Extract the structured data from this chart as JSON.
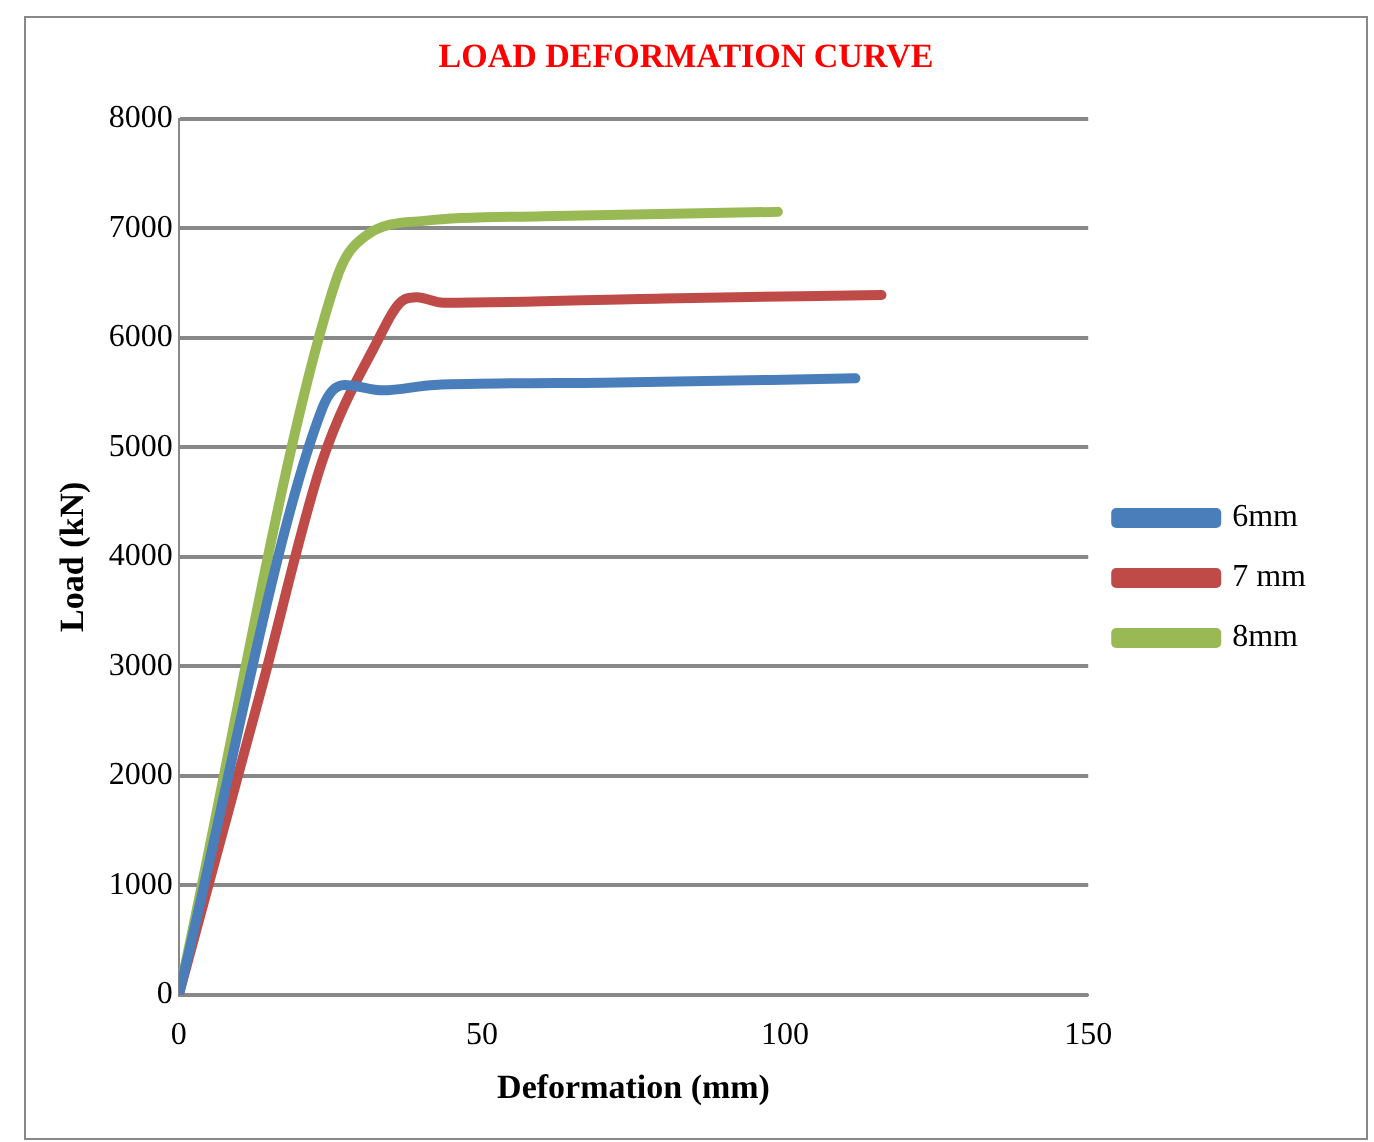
{
  "chart_data": {
    "type": "line",
    "title": "LOAD DEFORMATION CURVE",
    "xlabel": "Deformation (mm)",
    "ylabel": "Load (kN)",
    "xlim": [
      0,
      150
    ],
    "xticks": [
      0,
      50,
      100,
      150
    ],
    "ylim": [
      0,
      8000
    ],
    "yticks": [
      0,
      1000,
      2000,
      3000,
      4000,
      5000,
      6000,
      7000,
      8000
    ],
    "grid": "y",
    "legend": "right",
    "marker": "none",
    "line_style": "solid",
    "series": [
      {
        "name": "6mm",
        "color": "#4a7ebb",
        "x": [
          0,
          23.7,
          27.3,
          33.7,
          42.2,
          70,
          111.6
        ],
        "values": [
          0,
          5360,
          5570,
          5520,
          5570,
          5590,
          5630
        ]
      },
      {
        "name": "7 mm",
        "color": "#be4b48",
        "x": [
          0,
          13.8,
          23.7,
          32.2,
          37.2,
          39.3,
          43.6,
          80,
          115.9
        ],
        "values": [
          0,
          2830,
          4880,
          5910,
          6350,
          6370,
          6320,
          6360,
          6390
        ]
      },
      {
        "name": "8mm",
        "color": "#98b954",
        "x": [
          0,
          25.9,
          30.8,
          40.8,
          60,
          98.8
        ],
        "values": [
          0,
          6520,
          6930,
          7070,
          7110,
          7150
        ]
      }
    ]
  }
}
